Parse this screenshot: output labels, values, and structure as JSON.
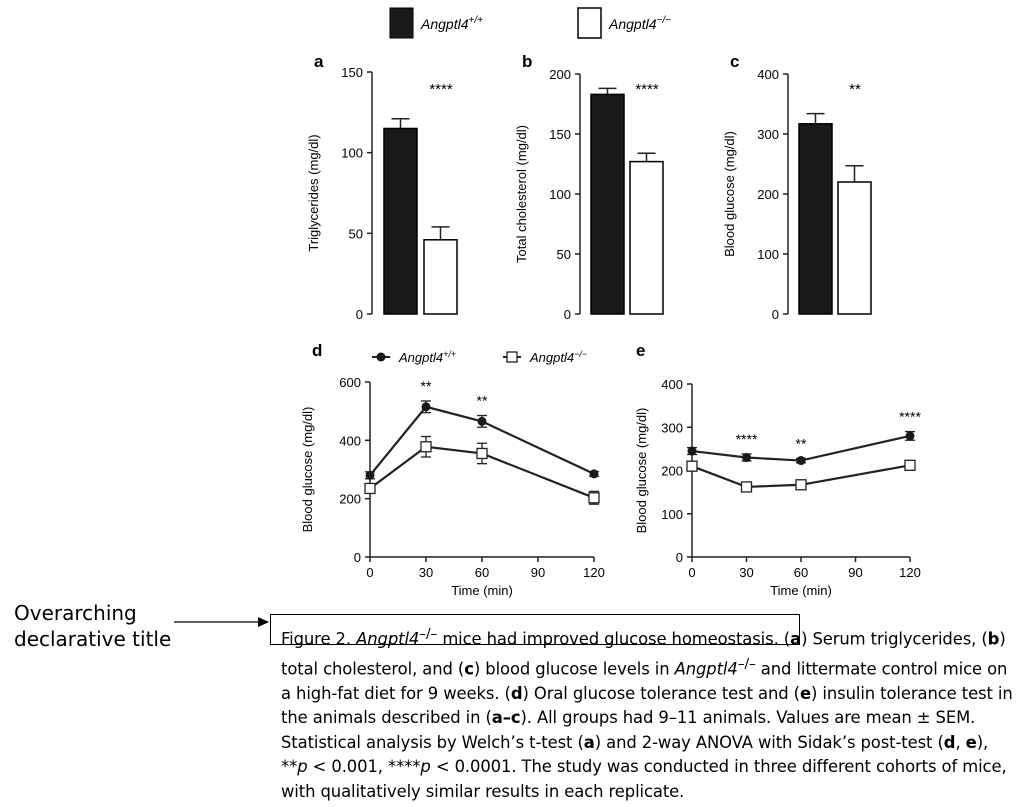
{
  "legend": {
    "wt": {
      "base": "Angptl4",
      "sup": "+/+"
    },
    "ko": {
      "base": "Angptl4",
      "sup": "−/−"
    }
  },
  "colors": {
    "wt": "#1a1a1a",
    "ko": "#ffffff",
    "line": "#222222"
  },
  "chart_data": [
    {
      "panel": "a",
      "type": "bar",
      "categories": [
        "Angptl4+/+",
        "Angptl4−/−"
      ],
      "values": [
        115,
        46
      ],
      "errors": [
        6,
        8
      ],
      "ylabel": "Triglycerides (mg/dl)",
      "ylim": [
        0,
        150
      ],
      "yticks": [
        0,
        50,
        100,
        150
      ],
      "significance": "****"
    },
    {
      "panel": "b",
      "type": "bar",
      "categories": [
        "Angptl4+/+",
        "Angptl4−/−"
      ],
      "values": [
        183,
        127
      ],
      "errors": [
        5,
        7
      ],
      "ylabel": "Total cholesterol (mg/dl)",
      "ylim": [
        0,
        200
      ],
      "yticks": [
        0,
        50,
        100,
        150,
        200
      ],
      "significance": "****"
    },
    {
      "panel": "c",
      "type": "bar",
      "categories": [
        "Angptl4+/+",
        "Angptl4−/−"
      ],
      "values": [
        317,
        220
      ],
      "errors": [
        17,
        27
      ],
      "ylabel": "Blood glucose (mg/dl)",
      "ylim": [
        0,
        400
      ],
      "yticks": [
        0,
        100,
        200,
        300,
        400
      ],
      "significance": "**"
    },
    {
      "panel": "d",
      "type": "line",
      "x": [
        0,
        30,
        60,
        120
      ],
      "xlim": [
        0,
        120
      ],
      "xticks": [
        0,
        30,
        60,
        90,
        120
      ],
      "xlabel": "Time (min)",
      "ylabel": "Blood glucose (mg/dl)",
      "ylim": [
        0,
        600
      ],
      "yticks": [
        0,
        200,
        400,
        600
      ],
      "series": [
        {
          "name": "Angptl4+/+",
          "values": [
            280,
            515,
            465,
            285
          ],
          "errors": [
            12,
            20,
            20,
            8
          ],
          "marker": "filled-circle"
        },
        {
          "name": "Angptl4−/−",
          "values": [
            235,
            378,
            355,
            203
          ],
          "errors": [
            15,
            35,
            35,
            22
          ],
          "marker": "open-square"
        }
      ],
      "annotations": [
        {
          "x": 30,
          "text": "**"
        },
        {
          "x": 60,
          "text": "**"
        }
      ]
    },
    {
      "panel": "e",
      "type": "line",
      "x": [
        0,
        30,
        60,
        120
      ],
      "xlim": [
        0,
        120
      ],
      "xticks": [
        0,
        30,
        60,
        90,
        120
      ],
      "xlabel": "Time (min)",
      "ylabel": "Blood glucose (mg/dl)",
      "ylim": [
        0,
        400
      ],
      "yticks": [
        0,
        100,
        200,
        300,
        400
      ],
      "series": [
        {
          "name": "Angptl4+/+",
          "values": [
            245,
            230,
            223,
            280
          ],
          "errors": [
            8,
            8,
            5,
            10
          ],
          "marker": "filled-circle"
        },
        {
          "name": "Angptl4−/−",
          "values": [
            210,
            162,
            167,
            212
          ],
          "errors": [
            10,
            5,
            5,
            10
          ],
          "marker": "open-square"
        }
      ],
      "annotations": [
        {
          "x": 30,
          "text": "****"
        },
        {
          "x": 60,
          "text": "**"
        },
        {
          "x": 120,
          "text": "****"
        }
      ]
    }
  ],
  "annotation": {
    "line1": "Overarching",
    "line2": "declarative title"
  },
  "caption": {
    "fig_label": "Figure 2. ",
    "gene": "Angptl4",
    "gene_sup": "–/–",
    "title_rest": " mice had improved glucose homeostasis.",
    "sa": "a",
    "ta": ") Serum triglycerides, (",
    "sb": "b",
    "tb": ") total cholesterol, and (",
    "sc": "c",
    "tc": ") blood glucose levels in ",
    "gene2": "Angptl4",
    "gene2_sup": "–/–",
    "td": " and littermate control mice on a high-fat diet for 9 weeks. (",
    "sd": "d",
    "te": ") Oral glucose tolerance test and (",
    "se": "e",
    "tf": ") insulin tolerance test in the animals described in (",
    "sac": "a–c",
    "tg": "). All groups had 9–11 animals. Values are mean ± SEM. Statistical analysis by Welch’s t-test (",
    "sa2": "a",
    "th": ") and 2-way ANOVA with Sidak’s post-test (",
    "sd2": "d",
    "ti": ", ",
    "se2": "e",
    "tj": "), **",
    "p1": "p",
    "tk": " < 0.001, ****",
    "p2": "p",
    "tl": " < 0.0001. The study was conducted in three different cohorts of mice, with qualitatively similar results in each replicate."
  }
}
